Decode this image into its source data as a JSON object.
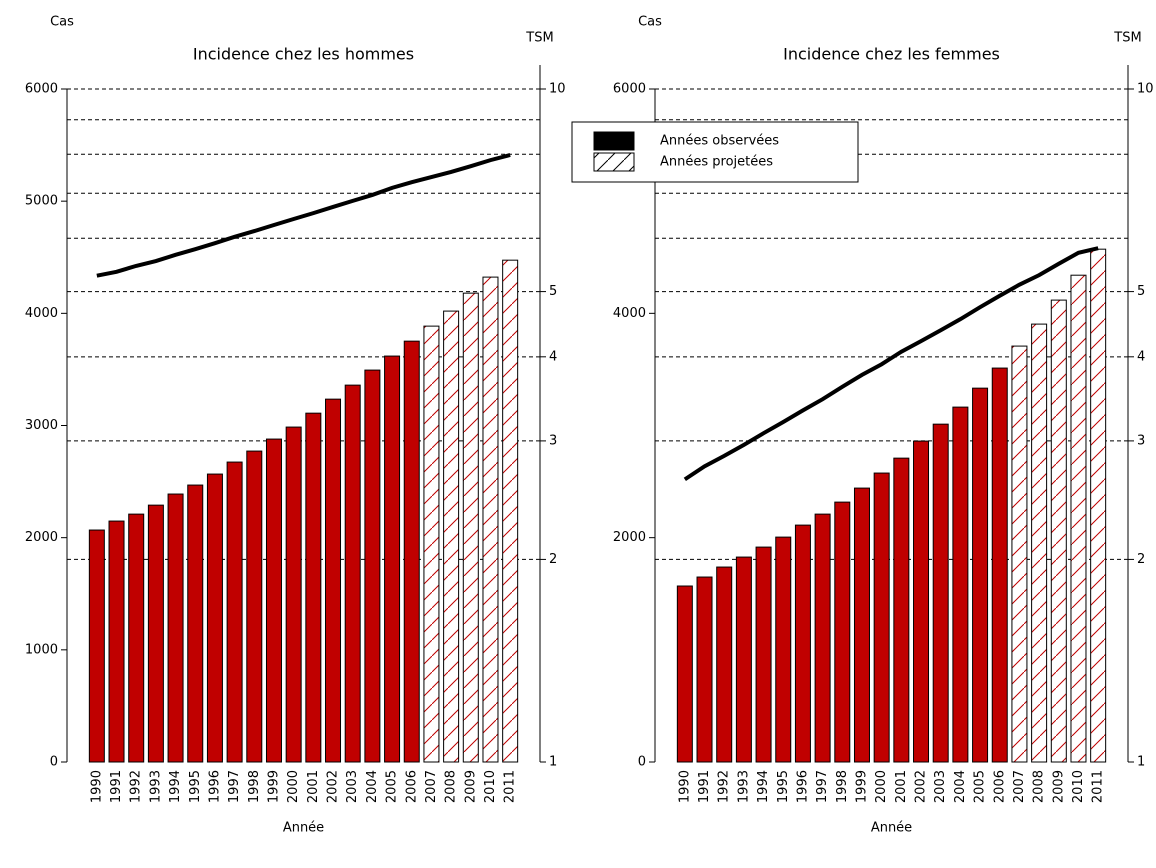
{
  "chart_data": [
    {
      "type": "bar",
      "title": "Incidence chez les hommes",
      "ylabel": "Cas",
      "y2label": "TSM",
      "xlabel": "Année",
      "categories": [
        "1990",
        "1991",
        "1992",
        "1993",
        "1994",
        "1995",
        "1996",
        "1997",
        "1998",
        "1999",
        "2000",
        "2001",
        "2002",
        "2003",
        "2004",
        "2005",
        "2006",
        "2007",
        "2008",
        "2009",
        "2010",
        "2011"
      ],
      "series": [
        {
          "name": "Années observées",
          "color": "#c00000",
          "values": [
            2068,
            2148,
            2210,
            2290,
            2389,
            2469,
            2567,
            2674,
            2772,
            2879,
            2986,
            3110,
            3235,
            3360,
            3494,
            3619,
            3752,
            null,
            null,
            null,
            null,
            null
          ]
        },
        {
          "name": "Années projetées",
          "color": "#c00000",
          "pattern": "hatch",
          "values": [
            null,
            null,
            null,
            null,
            null,
            null,
            null,
            null,
            null,
            null,
            null,
            null,
            null,
            null,
            null,
            null,
            null,
            3886,
            4020,
            4180,
            4323,
            4474
          ]
        },
        {
          "type": "line",
          "axis": "y2",
          "color": "#000000",
          "values": [
            5.28,
            5.35,
            5.46,
            5.55,
            5.67,
            5.78,
            5.9,
            6.03,
            6.15,
            6.28,
            6.41,
            6.54,
            6.68,
            6.82,
            6.96,
            7.13,
            7.27,
            7.4,
            7.53,
            7.68,
            7.84,
            7.98
          ]
        }
      ],
      "ylim": [
        0,
        6000
      ],
      "yticks": [
        0,
        1000,
        2000,
        3000,
        4000,
        5000,
        6000
      ],
      "y2lim": [
        1,
        10
      ],
      "y2scale": "log",
      "y2ticks": [
        1,
        2,
        3,
        4,
        5,
        10
      ],
      "y2grid": [
        2,
        3,
        4,
        5,
        6,
        7,
        8,
        9,
        10
      ],
      "legend": false
    },
    {
      "type": "bar",
      "title": "Incidence chez les femmes",
      "ylabel": "Cas",
      "y2label": "TSM",
      "xlabel": "Année",
      "categories": [
        "1990",
        "1991",
        "1992",
        "1993",
        "1994",
        "1995",
        "1996",
        "1997",
        "1998",
        "1999",
        "2000",
        "2001",
        "2002",
        "2003",
        "2004",
        "2005",
        "2006",
        "2007",
        "2008",
        "2009",
        "2010",
        "2011"
      ],
      "series": [
        {
          "name": "Années observées",
          "color": "#c00000",
          "values": [
            1569,
            1649,
            1738,
            1827,
            1916,
            2005,
            2112,
            2210,
            2317,
            2442,
            2576,
            2709,
            2861,
            3012,
            3164,
            3333,
            3512,
            null,
            null,
            null,
            null,
            null
          ]
        },
        {
          "name": "Années projetées",
          "color": "#c00000",
          "pattern": "hatch",
          "values": [
            null,
            null,
            null,
            null,
            null,
            null,
            null,
            null,
            null,
            null,
            null,
            null,
            null,
            null,
            null,
            null,
            null,
            3708,
            3904,
            4118,
            4340,
            4572
          ]
        },
        {
          "type": "line",
          "axis": "y2",
          "color": "#000000",
          "values": [
            2.63,
            2.75,
            2.85,
            2.96,
            3.08,
            3.2,
            3.33,
            3.46,
            3.61,
            3.76,
            3.9,
            4.07,
            4.22,
            4.38,
            4.55,
            4.74,
            4.93,
            5.12,
            5.29,
            5.5,
            5.71,
            5.8
          ]
        }
      ],
      "ylim": [
        0,
        6000
      ],
      "yticks": [
        0,
        2000,
        4000,
        6000
      ],
      "y2lim": [
        1,
        10
      ],
      "y2scale": "log",
      "y2ticks": [
        1,
        2,
        3,
        4,
        5,
        10
      ],
      "y2grid": [
        2,
        3,
        4,
        5,
        6,
        7,
        8,
        9,
        10
      ],
      "legend": "top-left"
    }
  ]
}
